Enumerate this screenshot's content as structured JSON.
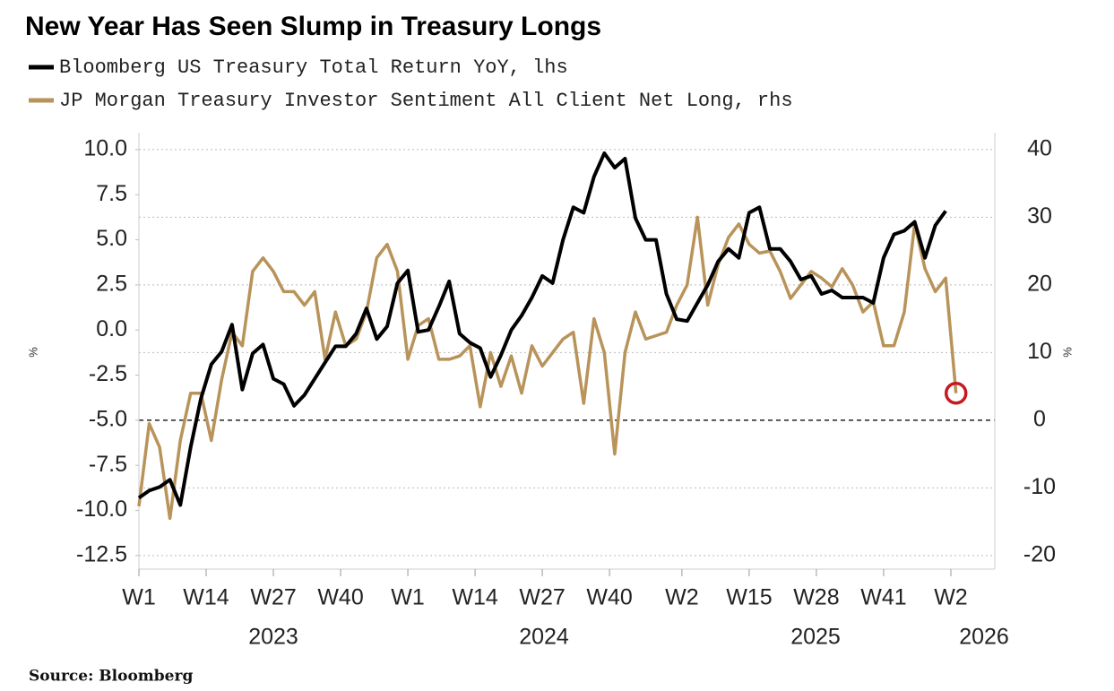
{
  "chart_data": {
    "type": "line",
    "title": "New Year Has Seen Slump in Treasury Longs",
    "source": "Source: Bloomberg",
    "y_label": "%",
    "y2_label": "%",
    "x_groups": [
      "2023",
      "2024",
      "2025",
      "2026"
    ],
    "x": [
      0,
      2,
      4,
      6,
      8,
      10,
      12,
      14,
      16,
      18,
      20,
      22,
      24,
      26,
      28,
      30,
      32,
      34,
      36,
      38,
      40,
      42,
      44,
      46,
      48,
      50,
      52,
      54,
      56,
      58,
      60,
      62,
      64,
      66,
      68,
      70,
      72,
      74,
      76,
      78,
      80,
      82,
      84,
      86,
      88,
      90,
      92,
      94,
      96,
      98,
      100,
      102,
      104,
      106,
      108,
      110,
      112,
      114,
      116,
      118,
      120,
      122,
      124,
      126,
      128,
      130,
      132,
      134,
      136,
      138,
      140,
      142,
      144,
      146,
      148,
      150,
      152,
      154,
      156,
      158
    ],
    "series": [
      {
        "name": "Bloomberg US Treasury Total Return YoY, lhs",
        "color": "#000000",
        "axis": "y",
        "values": [
          -9.3,
          -8.9,
          -8.7,
          -8.3,
          -9.7,
          -6.5,
          -3.8,
          -1.9,
          -1.2,
          0.3,
          -3.3,
          -1.3,
          -0.8,
          -2.7,
          -3.0,
          -4.2,
          -3.6,
          -2.7,
          -1.8,
          -0.9,
          -0.9,
          -0.2,
          1.2,
          -0.5,
          0.2,
          2.6,
          3.3,
          -0.1,
          0.0,
          1.3,
          2.7,
          -0.2,
          -0.7,
          -1.0,
          -2.6,
          -1.4,
          0.0,
          0.8,
          1.8,
          3.0,
          2.6,
          5.0,
          6.8,
          6.5,
          8.5,
          9.8,
          9.0,
          9.5,
          6.2,
          5.0,
          5.0,
          2.0,
          0.6,
          0.5,
          1.5,
          2.5,
          3.8,
          4.5,
          4.0,
          6.5,
          6.8,
          4.5,
          4.5,
          3.8,
          2.8,
          3.0,
          2.0,
          2.2,
          1.8,
          1.8,
          1.8,
          1.5,
          4.0,
          5.3,
          5.5,
          6.0,
          4.0,
          5.8,
          6.6,
          null
        ]
      },
      {
        "name": "JP Morgan Treasury Investor Sentiment All Client Net Long, rhs",
        "color": "#b8935a",
        "axis": "y2",
        "values": [
          -12.7,
          -0.5,
          -4,
          -14.5,
          -3,
          4,
          4,
          -3,
          6,
          13,
          11,
          22,
          24,
          22,
          19,
          19,
          17,
          19,
          9,
          16,
          11,
          12,
          16,
          24,
          26,
          22,
          9,
          14,
          15,
          9,
          9,
          9.5,
          11,
          2,
          10,
          5,
          9.5,
          4,
          11,
          8,
          10,
          12,
          13,
          2.5,
          15,
          10,
          -5,
          10,
          16,
          12,
          12.5,
          13,
          17,
          20,
          30,
          17,
          23,
          27,
          29,
          26,
          24.7,
          25,
          22,
          18,
          20,
          22,
          21,
          19.7,
          22.4,
          20,
          16,
          17.5,
          11,
          11,
          16,
          29,
          22.4,
          19,
          21,
          4
        ]
      }
    ],
    "xlim": [
      0,
      165.5
    ],
    "xticks": [
      {
        "value": 0,
        "label": "W1"
      },
      {
        "value": 13,
        "label": "W14"
      },
      {
        "value": 26,
        "label": "W27"
      },
      {
        "value": 39,
        "label": "W40"
      },
      {
        "value": 52,
        "label": "W1"
      },
      {
        "value": 65,
        "label": "W14"
      },
      {
        "value": 78,
        "label": "W27"
      },
      {
        "value": 91,
        "label": "W40"
      },
      {
        "value": 105,
        "label": "W2"
      },
      {
        "value": 118,
        "label": "W15"
      },
      {
        "value": 131,
        "label": "W28"
      },
      {
        "value": 144,
        "label": "W41"
      },
      {
        "value": 157,
        "label": "W2"
      }
    ],
    "ylim": [
      -13.25,
      10.94
    ],
    "yticks": [
      {
        "value": 10,
        "label": "10.0"
      },
      {
        "value": 7.5,
        "label": "7.5"
      },
      {
        "value": 5,
        "label": "5.0"
      },
      {
        "value": 2.5,
        "label": "2.5"
      },
      {
        "value": 0,
        "label": "0.0"
      },
      {
        "value": -2.5,
        "label": "-2.5"
      },
      {
        "value": -5,
        "label": "-5.0"
      },
      {
        "value": -7.5,
        "label": "-7.5"
      },
      {
        "value": -10,
        "label": "-10.0"
      },
      {
        "value": -12.5,
        "label": "-12.5"
      }
    ],
    "y2lim": [
      -22,
      42.5
    ],
    "y2ticks": [
      40,
      30,
      20,
      10,
      0,
      -10,
      -20
    ],
    "grid": true,
    "zero_line_y2": true
  }
}
